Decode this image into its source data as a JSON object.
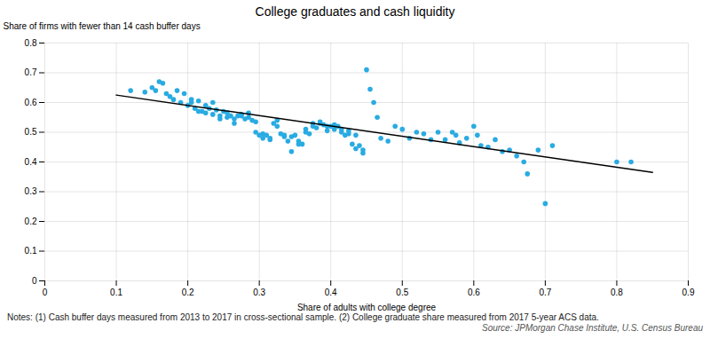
{
  "chart_data": {
    "type": "scatter",
    "title": "College graduates and cash liquidity",
    "xlabel": "Share of adults with college degree",
    "ylabel": "Share of firms with fewer than 14 cash buffer days",
    "xlim": [
      0,
      0.9
    ],
    "ylim": [
      0,
      0.8
    ],
    "xticks": [
      0,
      0.1,
      0.2,
      0.3,
      0.4,
      0.5,
      0.6,
      0.7,
      0.8,
      0.9
    ],
    "yticks": [
      0,
      0.1,
      0.2,
      0.3,
      0.4,
      0.5,
      0.6,
      0.7,
      0.8
    ],
    "grid": true,
    "color": "#29ABE2",
    "x": [
      0.12,
      0.14,
      0.15,
      0.155,
      0.16,
      0.165,
      0.17,
      0.175,
      0.18,
      0.185,
      0.19,
      0.195,
      0.2,
      0.205,
      0.205,
      0.21,
      0.215,
      0.215,
      0.22,
      0.225,
      0.225,
      0.23,
      0.235,
      0.235,
      0.24,
      0.245,
      0.245,
      0.25,
      0.255,
      0.255,
      0.26,
      0.265,
      0.265,
      0.27,
      0.275,
      0.275,
      0.28,
      0.285,
      0.285,
      0.29,
      0.295,
      0.295,
      0.3,
      0.305,
      0.305,
      0.31,
      0.315,
      0.315,
      0.32,
      0.325,
      0.325,
      0.33,
      0.335,
      0.335,
      0.34,
      0.345,
      0.345,
      0.35,
      0.355,
      0.355,
      0.36,
      0.365,
      0.365,
      0.37,
      0.375,
      0.375,
      0.38,
      0.385,
      0.385,
      0.39,
      0.395,
      0.395,
      0.4,
      0.405,
      0.405,
      0.41,
      0.415,
      0.415,
      0.42,
      0.425,
      0.425,
      0.43,
      0.435,
      0.435,
      0.44,
      0.445,
      0.445,
      0.45,
      0.455,
      0.46,
      0.465,
      0.47,
      0.48,
      0.49,
      0.5,
      0.51,
      0.52,
      0.53,
      0.54,
      0.55,
      0.56,
      0.57,
      0.575,
      0.58,
      0.59,
      0.6,
      0.605,
      0.61,
      0.62,
      0.63,
      0.64,
      0.65,
      0.66,
      0.67,
      0.675,
      0.69,
      0.7,
      0.71,
      0.8,
      0.82
    ],
    "values": [
      0.64,
      0.635,
      0.65,
      0.64,
      0.67,
      0.665,
      0.63,
      0.62,
      0.61,
      0.64,
      0.6,
      0.63,
      0.59,
      0.61,
      0.6,
      0.58,
      0.605,
      0.57,
      0.57,
      0.59,
      0.565,
      0.58,
      0.6,
      0.56,
      0.575,
      0.555,
      0.545,
      0.57,
      0.565,
      0.55,
      0.555,
      0.545,
      0.53,
      0.555,
      0.56,
      0.555,
      0.545,
      0.565,
      0.55,
      0.54,
      0.535,
      0.5,
      0.49,
      0.495,
      0.48,
      0.49,
      0.475,
      0.48,
      0.53,
      0.54,
      0.52,
      0.495,
      0.485,
      0.49,
      0.47,
      0.485,
      0.435,
      0.49,
      0.46,
      0.47,
      0.46,
      0.5,
      0.51,
      0.495,
      0.53,
      0.52,
      0.515,
      0.535,
      0.53,
      0.525,
      0.52,
      0.505,
      0.52,
      0.525,
      0.51,
      0.52,
      0.5,
      0.51,
      0.49,
      0.505,
      0.495,
      0.46,
      0.49,
      0.445,
      0.455,
      0.44,
      0.43,
      0.71,
      0.645,
      0.6,
      0.55,
      0.48,
      0.47,
      0.52,
      0.51,
      0.48,
      0.5,
      0.495,
      0.475,
      0.5,
      0.475,
      0.5,
      0.49,
      0.465,
      0.48,
      0.52,
      0.49,
      0.455,
      0.45,
      0.475,
      0.435,
      0.44,
      0.42,
      0.4,
      0.36,
      0.44,
      0.26,
      0.455,
      0.4,
      0.4
    ],
    "trend": {
      "type": "line",
      "color": "#000000",
      "x": [
        0.1,
        0.85
      ],
      "values": [
        0.625,
        0.365
      ]
    },
    "notes": "Notes: (1) Cash buffer days measured from 2013 to 2017 in cross-sectional sample. (2) College graduate share measured from 2017 5-year ACS data.",
    "source": "Source: JPMorgan Chase Institute, U.S. Census Bureau"
  }
}
